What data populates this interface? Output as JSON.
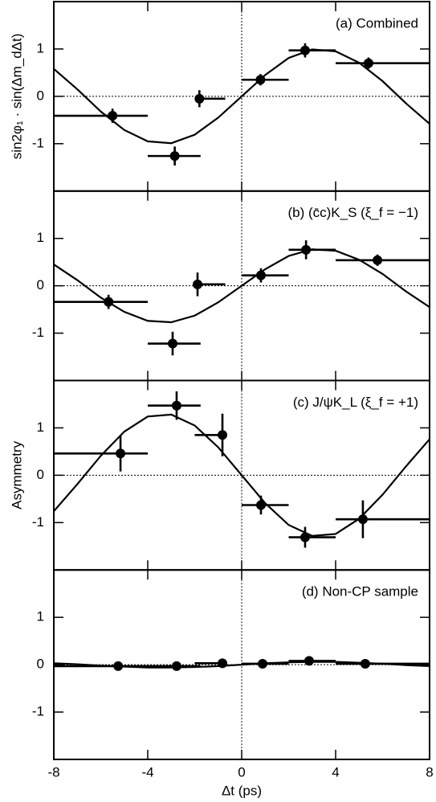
{
  "chart_data": [
    {
      "type": "scatter",
      "annotation": "(a) Combined",
      "ylabel": "sin2φ₁ · sin(Δm_dΔt)",
      "xlim": [
        -8,
        8
      ],
      "ylim": [
        -2,
        2
      ],
      "yticks": [
        -1,
        0,
        1
      ],
      "x": [
        -5.5,
        -2.85,
        -1.8,
        0.8,
        2.7,
        5.4
      ],
      "x_low": [
        -8,
        -4,
        -2,
        0,
        2,
        4
      ],
      "x_high": [
        -4,
        -1.75,
        -0.7,
        2,
        4,
        8
      ],
      "values": [
        -0.41,
        -1.26,
        -0.05,
        0.35,
        0.97,
        0.7
      ],
      "errors": [
        0.15,
        0.2,
        0.18,
        0.12,
        0.15,
        0.12
      ],
      "curve": {
        "x": [
          -8,
          -7,
          -6,
          -5,
          -4,
          -3,
          -2,
          -1,
          0,
          1,
          2,
          3,
          4,
          5,
          6,
          7,
          8
        ],
        "values": [
          0.58,
          0.15,
          -0.32,
          -0.71,
          -0.95,
          -0.99,
          -0.81,
          -0.45,
          0,
          0.45,
          0.81,
          0.99,
          0.95,
          0.71,
          0.32,
          -0.15,
          -0.58
        ]
      }
    },
    {
      "type": "scatter",
      "annotation": "(b) (c̄c)K_S (ξ_f = −1)",
      "xlim": [
        -8,
        8
      ],
      "ylim": [
        -2,
        2
      ],
      "yticks": [
        -1,
        0,
        1
      ],
      "x": [
        -5.67,
        -2.94,
        -1.88,
        0.82,
        2.74,
        5.78
      ],
      "x_low": [
        -8,
        -4,
        -2,
        0,
        2,
        4
      ],
      "x_high": [
        -4,
        -1.75,
        -0.7,
        2,
        4,
        8
      ],
      "values": [
        -0.34,
        -1.22,
        0.03,
        0.22,
        0.76,
        0.54
      ],
      "errors": [
        0.15,
        0.25,
        0.25,
        0.15,
        0.2,
        0.12
      ],
      "curve": {
        "x": [
          -8,
          -7,
          -6,
          -5,
          -4,
          -3,
          -2,
          -1,
          0,
          1,
          2,
          3,
          4,
          5,
          6,
          7,
          8
        ],
        "values": [
          0.45,
          0.12,
          -0.25,
          -0.55,
          -0.74,
          -0.77,
          -0.63,
          -0.35,
          0,
          0.35,
          0.63,
          0.77,
          0.74,
          0.55,
          0.25,
          -0.12,
          -0.45
        ]
      }
    },
    {
      "type": "scatter",
      "annotation": "(c) J/ψK_L (ξ_f = +1)",
      "ylabel": "Asymmetry",
      "xlim": [
        -8,
        8
      ],
      "ylim": [
        -2,
        2
      ],
      "yticks": [
        -1,
        0,
        1
      ],
      "x": [
        -5.16,
        -2.77,
        -0.82,
        0.82,
        2.7,
        5.16
      ],
      "x_low": [
        -8,
        -4,
        -2,
        0,
        2,
        4
      ],
      "x_high": [
        -4,
        -1.75,
        -0.7,
        2,
        4,
        8
      ],
      "values": [
        0.46,
        1.47,
        0.85,
        -0.63,
        -1.31,
        -0.93
      ],
      "errors": [
        0.38,
        0.3,
        0.45,
        0.2,
        0.22,
        0.4
      ],
      "curve": {
        "x": [
          -8,
          -7,
          -6,
          -5,
          -4,
          -3,
          -2,
          -1,
          0,
          1,
          2,
          3,
          4,
          5,
          6,
          7,
          8
        ],
        "values": [
          -0.76,
          -0.19,
          0.41,
          0.92,
          1.24,
          1.28,
          1.05,
          0.59,
          0,
          -0.59,
          -1.05,
          -1.28,
          -1.24,
          -0.92,
          -0.41,
          0.19,
          0.76
        ]
      }
    },
    {
      "type": "scatter",
      "annotation": "(d) Non-CP sample",
      "xlabel": "Δt (ps)",
      "xlim": [
        -8,
        8
      ],
      "xticks": [
        -8,
        -4,
        0,
        4,
        8
      ],
      "ylim": [
        -2,
        2
      ],
      "yticks": [
        -1,
        0,
        1
      ],
      "x": [
        -5.26,
        -2.77,
        -0.82,
        0.89,
        2.87,
        5.26
      ],
      "x_low": [
        -8,
        -4,
        -2,
        0,
        2,
        4
      ],
      "x_high": [
        -4,
        -1.75,
        -0.7,
        2,
        4,
        8
      ],
      "values": [
        -0.03,
        -0.03,
        0.03,
        0.02,
        0.08,
        0.02
      ],
      "errors": [
        0.05,
        0.05,
        0.05,
        0.05,
        0.05,
        0.05
      ],
      "curve": {
        "x": [
          -8,
          -7,
          -6,
          -5,
          -4,
          -3,
          -2,
          -1,
          0,
          1,
          2,
          3,
          4,
          5,
          6,
          7,
          8
        ],
        "values": [
          0.03,
          0.01,
          -0.02,
          -0.04,
          -0.06,
          -0.06,
          -0.05,
          -0.03,
          0,
          0.03,
          0.05,
          0.06,
          0.06,
          0.04,
          0.02,
          -0.01,
          -0.03
        ]
      }
    }
  ]
}
